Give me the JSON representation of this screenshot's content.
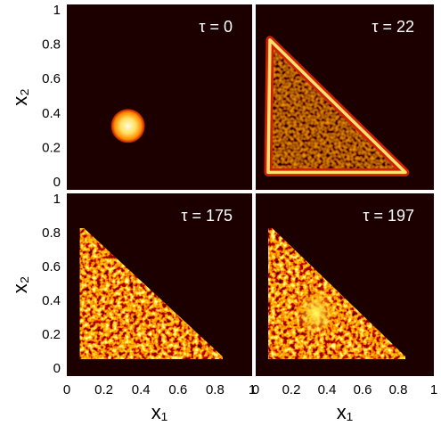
{
  "chart_data": [
    {
      "type": "image",
      "annotation": "τ = 0",
      "xlim": [
        0,
        1
      ],
      "ylim": [
        0,
        1
      ],
      "yticks": [
        0,
        0.2,
        0.4,
        0.6,
        0.8,
        1
      ],
      "ylabel": "x₂"
    },
    {
      "type": "image",
      "annotation": "τ = 22",
      "xlim": [
        0,
        1
      ],
      "ylim": [
        0,
        1
      ]
    },
    {
      "type": "image",
      "annotation": "τ = 175",
      "xlim": [
        0,
        1
      ],
      "ylim": [
        0,
        1
      ],
      "xticks": [
        0,
        0.2,
        0.4,
        0.6,
        0.8,
        1
      ],
      "yticks": [
        0,
        0.2,
        0.4,
        0.6,
        0.8,
        1
      ],
      "xlabel": "x₁",
      "ylabel": "x₂"
    },
    {
      "type": "image",
      "annotation": "τ = 197",
      "xlim": [
        0,
        1
      ],
      "ylim": [
        0,
        1
      ],
      "xticks": [
        0,
        0.2,
        0.4,
        0.6,
        0.8,
        1
      ],
      "xlabel": "x₁"
    }
  ]
}
